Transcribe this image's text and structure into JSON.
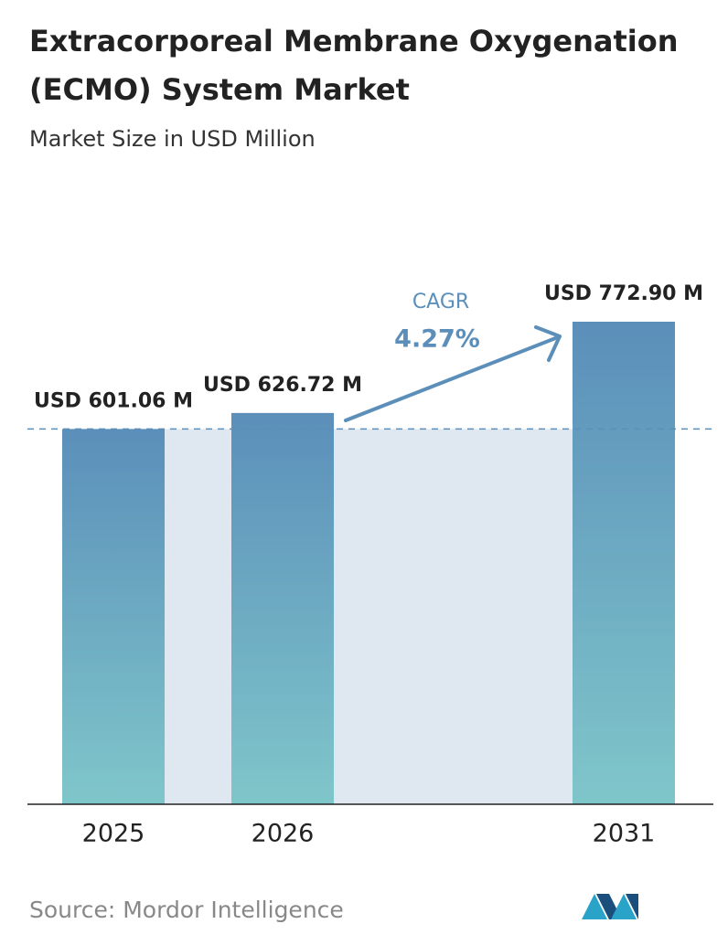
{
  "chart_data": {
    "type": "bar",
    "title": "Extracorporeal Membrane Oxygenation (ECMO) System Market",
    "subtitle": "Market Size in USD Million",
    "categories": [
      "2025",
      "2026",
      "2031"
    ],
    "values": [
      601.06,
      626.72,
      772.9
    ],
    "value_labels": [
      "USD 601.06 M",
      "USD 626.72 M",
      "USD 772.90 M"
    ],
    "annotation": {
      "label": "CAGR",
      "value": "4.27%"
    },
    "source": "Source:  Mordor Intelligence"
  }
}
